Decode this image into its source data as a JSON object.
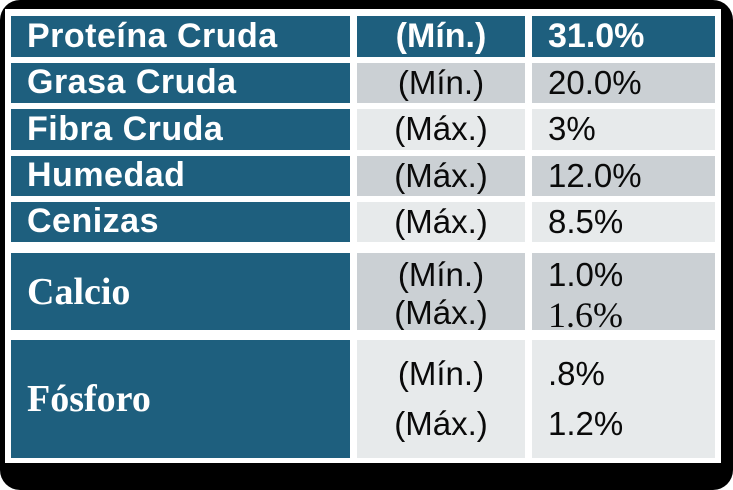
{
  "colors": {
    "teal": "#1E5F7E",
    "gray_dark": "#CBD0D4",
    "gray_light": "#E7EAEB",
    "frame_black": "#000000"
  },
  "table": {
    "rows": [
      {
        "label": "Proteína Cruda",
        "lines": [
          {
            "qualifier": "(Mín.)",
            "value": "31.0%"
          }
        ]
      },
      {
        "label": "Grasa Cruda",
        "lines": [
          {
            "qualifier": "(Mín.)",
            "value": "20.0%"
          }
        ]
      },
      {
        "label": "Fibra Cruda",
        "lines": [
          {
            "qualifier": "(Máx.)",
            "value": "3%"
          }
        ]
      },
      {
        "label": "Humedad",
        "lines": [
          {
            "qualifier": "(Máx.)",
            "value": "12.0%"
          }
        ]
      },
      {
        "label": "Cenizas",
        "lines": [
          {
            "qualifier": "(Máx.)",
            "value": "8.5%"
          }
        ]
      },
      {
        "label": "Calcio",
        "lines": [
          {
            "qualifier": "(Mín.)",
            "value": "1.0%"
          },
          {
            "qualifier": "(Máx.)",
            "value": "1.6%"
          }
        ]
      },
      {
        "label": "Fósforo",
        "lines": [
          {
            "qualifier": "(Mín.)",
            "value": ".8%"
          },
          {
            "qualifier": "(Máx.)",
            "value": "1.2%"
          }
        ]
      }
    ]
  }
}
